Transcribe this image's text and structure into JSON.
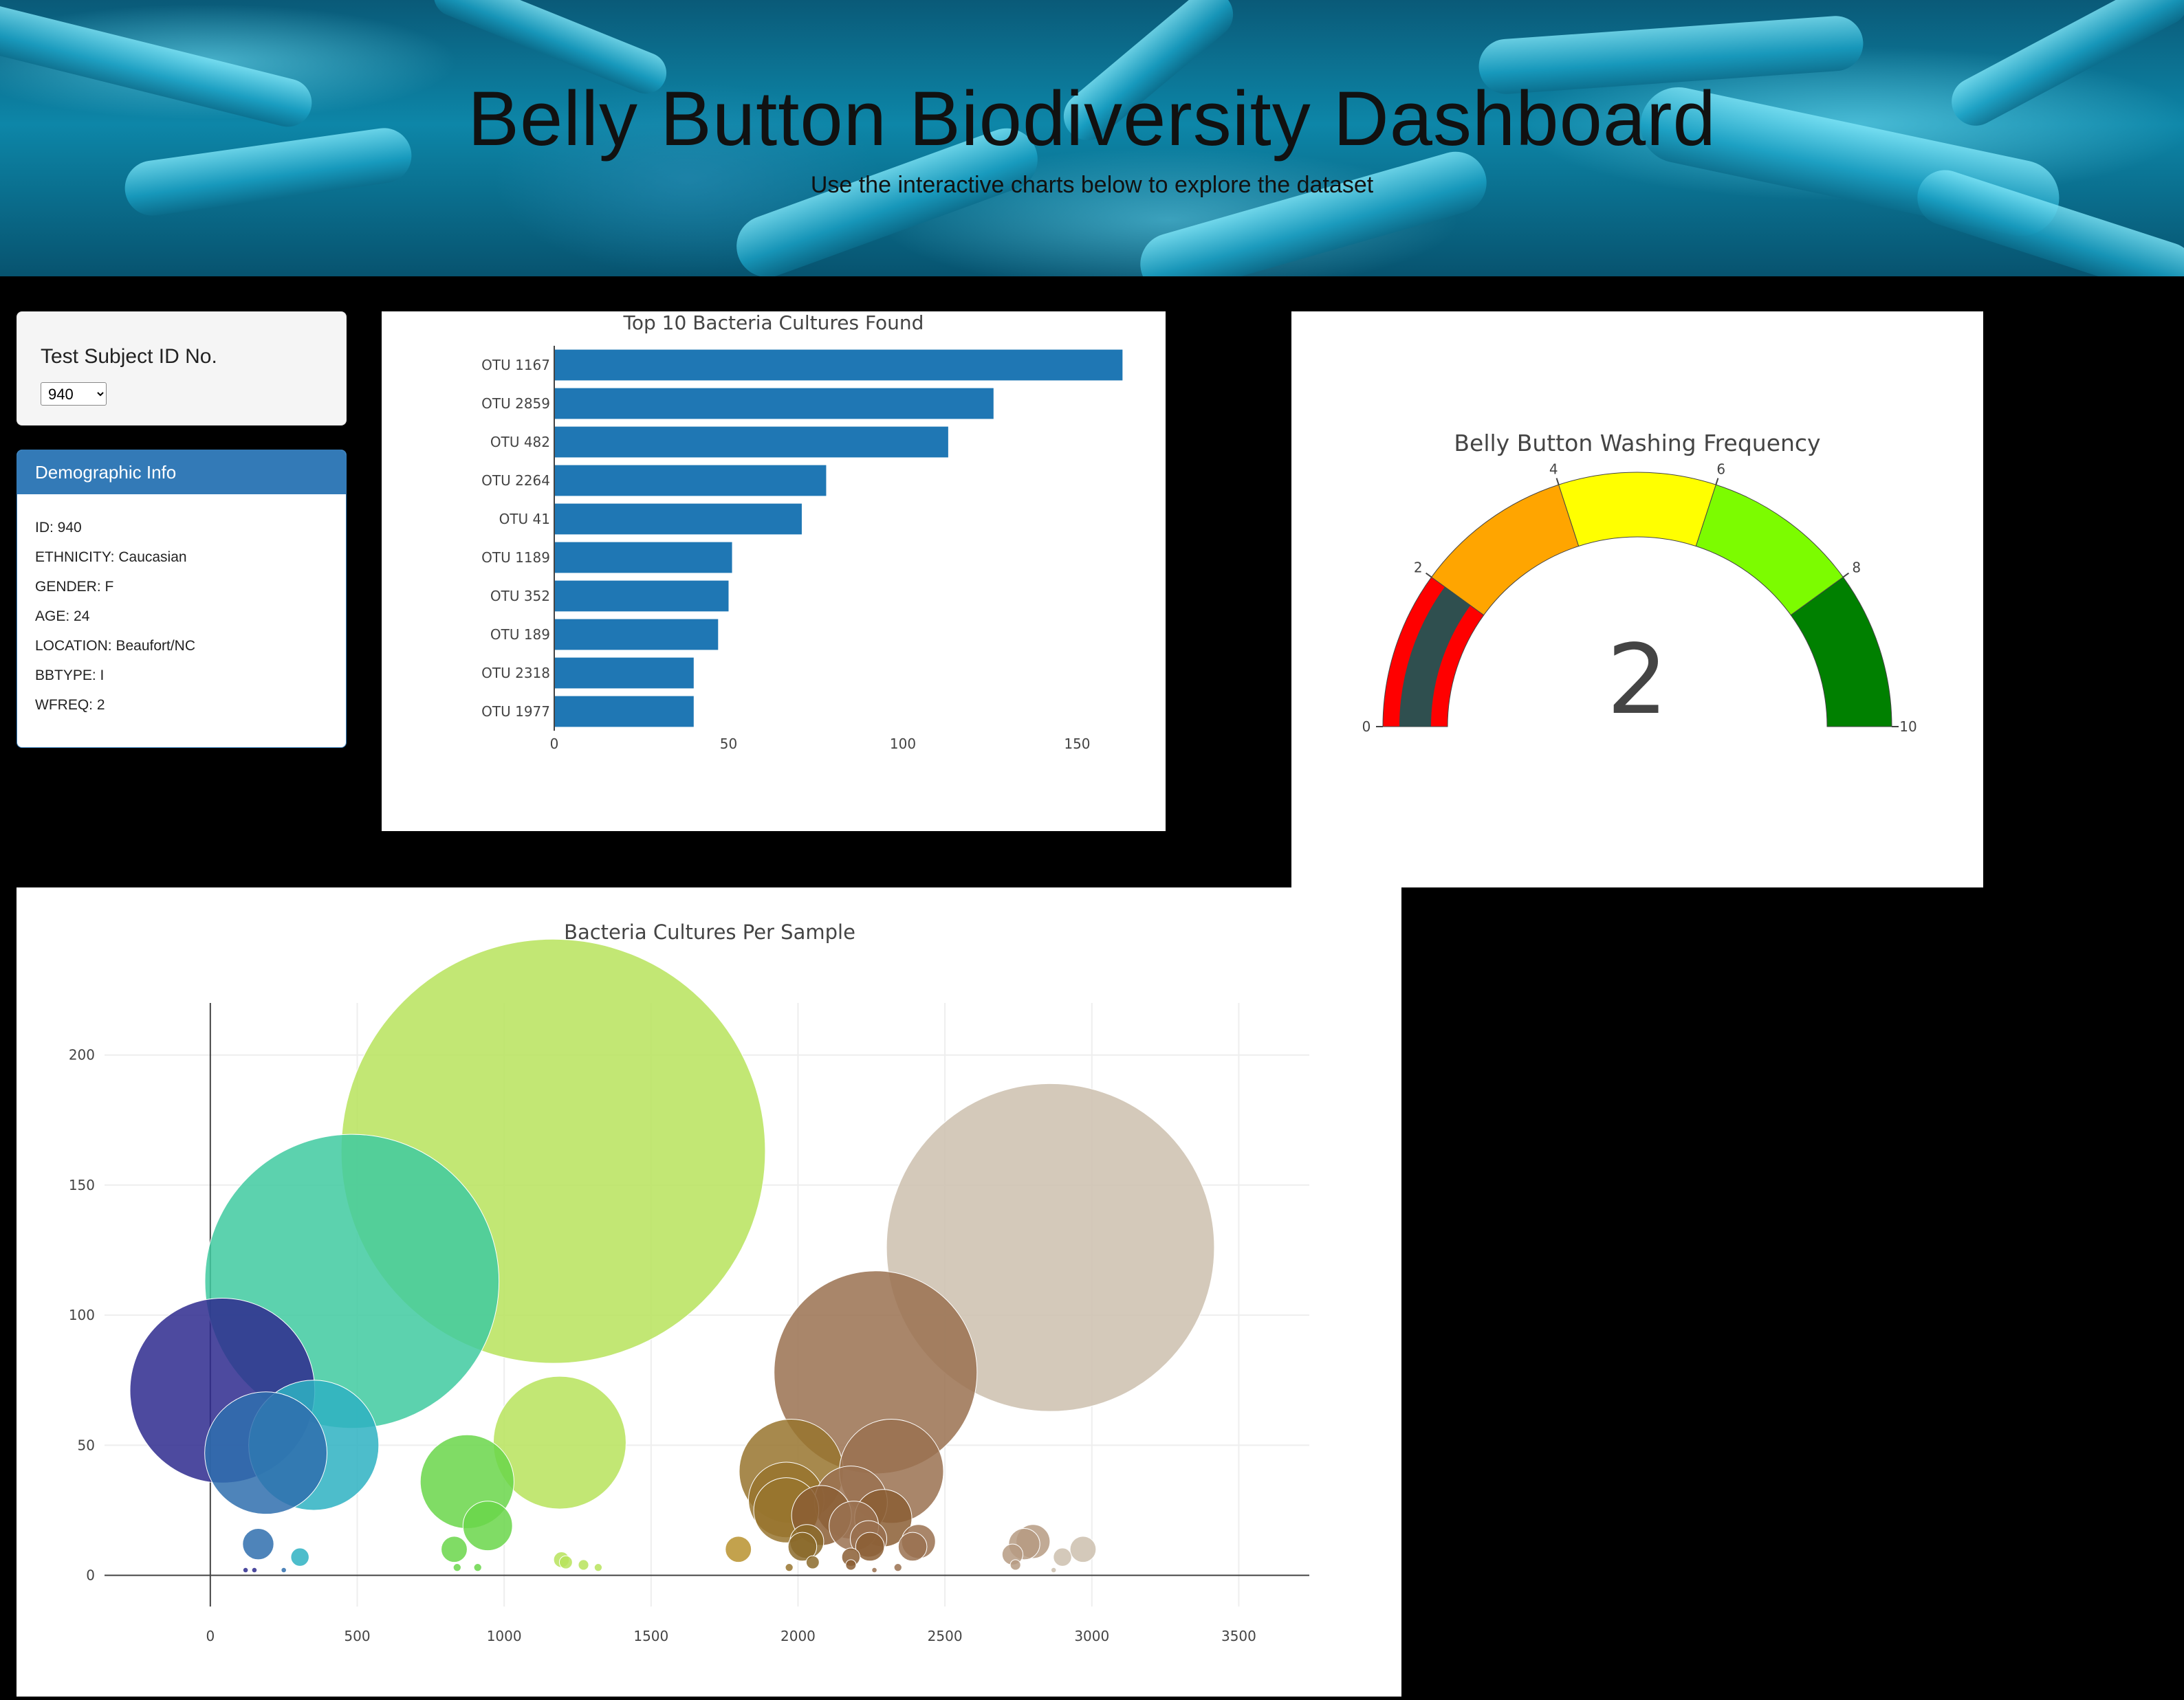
{
  "header": {
    "title": "Belly Button Biodiversity Dashboard",
    "subtitle": "Use the interactive charts below to explore the dataset"
  },
  "selector": {
    "label": "Test Subject ID No.",
    "selected": "940"
  },
  "demographics": {
    "heading": "Demographic Info",
    "rows": [
      "ID: 940",
      "ETHNICITY: Caucasian",
      "GENDER: F",
      "AGE: 24",
      "LOCATION: Beaufort/NC",
      "BBTYPE: I",
      "WFREQ: 2"
    ]
  },
  "colors": {
    "bar": "#1f77b4",
    "gauge_needle": "#2f4f4f"
  },
  "chart_data": [
    {
      "type": "bar",
      "orientation": "horizontal",
      "title": "Top 10 Bacteria Cultures Found",
      "categories": [
        "OTU 1167",
        "OTU 2859",
        "OTU 482",
        "OTU 2264",
        "OTU 41",
        "OTU 1189",
        "OTU 352",
        "OTU 189",
        "OTU 2318",
        "OTU 1977"
      ],
      "values": [
        163,
        126,
        113,
        78,
        71,
        51,
        50,
        47,
        40,
        40
      ],
      "xticks": [
        "0",
        "50",
        "100",
        "150"
      ],
      "xlim": [
        0,
        172
      ],
      "grid": false
    },
    {
      "type": "gauge",
      "title": "Belly Button Washing Frequency",
      "value": 2,
      "range": [
        0,
        10
      ],
      "tick_labels": [
        "0",
        "2",
        "4",
        "6",
        "8",
        "10"
      ],
      "steps": [
        {
          "range": [
            0,
            2
          ],
          "color": "#ff0000"
        },
        {
          "range": [
            2,
            4
          ],
          "color": "#ffa500"
        },
        {
          "range": [
            4,
            6
          ],
          "color": "#ffff00"
        },
        {
          "range": [
            6,
            8
          ],
          "color": "#7cfc00"
        },
        {
          "range": [
            8,
            10
          ],
          "color": "#008000"
        }
      ]
    },
    {
      "type": "scatter",
      "subtype": "bubble",
      "title": "Bacteria Cultures Per Sample",
      "xlim": [
        -360,
        3740
      ],
      "ylim": [
        -12,
        220
      ],
      "xticks": [
        "0",
        "500",
        "1000",
        "1500",
        "2000",
        "2500",
        "3000",
        "3500"
      ],
      "yticks": [
        "0",
        "50",
        "100",
        "150",
        "200"
      ],
      "grid": true,
      "points": [
        {
          "x": 1167,
          "y": 163,
          "color": "#b7e35c"
        },
        {
          "x": 2859,
          "y": 126,
          "color": "#cdbfae"
        },
        {
          "x": 482,
          "y": 113,
          "color": "#3fcaa0"
        },
        {
          "x": 2264,
          "y": 78,
          "color": "#9a7150"
        },
        {
          "x": 41,
          "y": 71,
          "color": "#2e2a8e"
        },
        {
          "x": 1189,
          "y": 51,
          "color": "#b7e35c"
        },
        {
          "x": 352,
          "y": 50,
          "color": "#2eb2c2"
        },
        {
          "x": 189,
          "y": 47,
          "color": "#2f6fae"
        },
        {
          "x": 1977,
          "y": 40,
          "color": "#98742e"
        },
        {
          "x": 2318,
          "y": 40,
          "color": "#9a7150"
        },
        {
          "x": 874,
          "y": 36,
          "color": "#6ad64a"
        },
        {
          "x": 1960,
          "y": 29,
          "color": "#98742e"
        },
        {
          "x": 2180,
          "y": 28,
          "color": "#9a7150"
        },
        {
          "x": 1960,
          "y": 25,
          "color": "#98742e"
        },
        {
          "x": 2080,
          "y": 23,
          "color": "#8b5e34"
        },
        {
          "x": 2290,
          "y": 22,
          "color": "#8b5e34"
        },
        {
          "x": 944,
          "y": 19,
          "color": "#6ad64a"
        },
        {
          "x": 2190,
          "y": 19,
          "color": "#9a7150"
        },
        {
          "x": 2240,
          "y": 14,
          "color": "#9a7150"
        },
        {
          "x": 2410,
          "y": 13,
          "color": "#9a7150"
        },
        {
          "x": 2800,
          "y": 13,
          "color": "#b69b82"
        },
        {
          "x": 2770,
          "y": 12,
          "color": "#b69b82"
        },
        {
          "x": 163,
          "y": 12,
          "color": "#2f6fae"
        },
        {
          "x": 2030,
          "y": 13,
          "color": "#8b6a2a"
        },
        {
          "x": 2015,
          "y": 11,
          "color": "#8b6a2a"
        },
        {
          "x": 2245,
          "y": 11,
          "color": "#8b5e34"
        },
        {
          "x": 2390,
          "y": 11,
          "color": "#9a7150"
        },
        {
          "x": 1797,
          "y": 10,
          "color": "#b8922e"
        },
        {
          "x": 2970,
          "y": 10,
          "color": "#cdbfae"
        },
        {
          "x": 830,
          "y": 10,
          "color": "#6ad64a"
        },
        {
          "x": 2730,
          "y": 8,
          "color": "#b69b82"
        },
        {
          "x": 305,
          "y": 7,
          "color": "#2eb2c2"
        },
        {
          "x": 2180,
          "y": 7,
          "color": "#8b5e34"
        },
        {
          "x": 2900,
          "y": 7,
          "color": "#cdbfae"
        },
        {
          "x": 1195,
          "y": 6,
          "color": "#b7e35c"
        },
        {
          "x": 1210,
          "y": 5,
          "color": "#b7e35c"
        },
        {
          "x": 2050,
          "y": 5,
          "color": "#8b6a2a"
        },
        {
          "x": 2180,
          "y": 4,
          "color": "#8b5e34"
        },
        {
          "x": 1270,
          "y": 4,
          "color": "#b7e35c"
        },
        {
          "x": 2740,
          "y": 4,
          "color": "#b69b82"
        },
        {
          "x": 1320,
          "y": 3,
          "color": "#b7e35c"
        },
        {
          "x": 840,
          "y": 3,
          "color": "#6ad64a"
        },
        {
          "x": 910,
          "y": 3,
          "color": "#6ad64a"
        },
        {
          "x": 1970,
          "y": 3,
          "color": "#98742e"
        },
        {
          "x": 2340,
          "y": 3,
          "color": "#9a7150"
        },
        {
          "x": 120,
          "y": 2,
          "color": "#2e2a8e"
        },
        {
          "x": 250,
          "y": 2,
          "color": "#2f6fae"
        },
        {
          "x": 150,
          "y": 2,
          "color": "#2e2a8e"
        },
        {
          "x": 2260,
          "y": 2,
          "color": "#9a7150"
        },
        {
          "x": 2870,
          "y": 2,
          "color": "#cdbfae"
        }
      ]
    }
  ]
}
